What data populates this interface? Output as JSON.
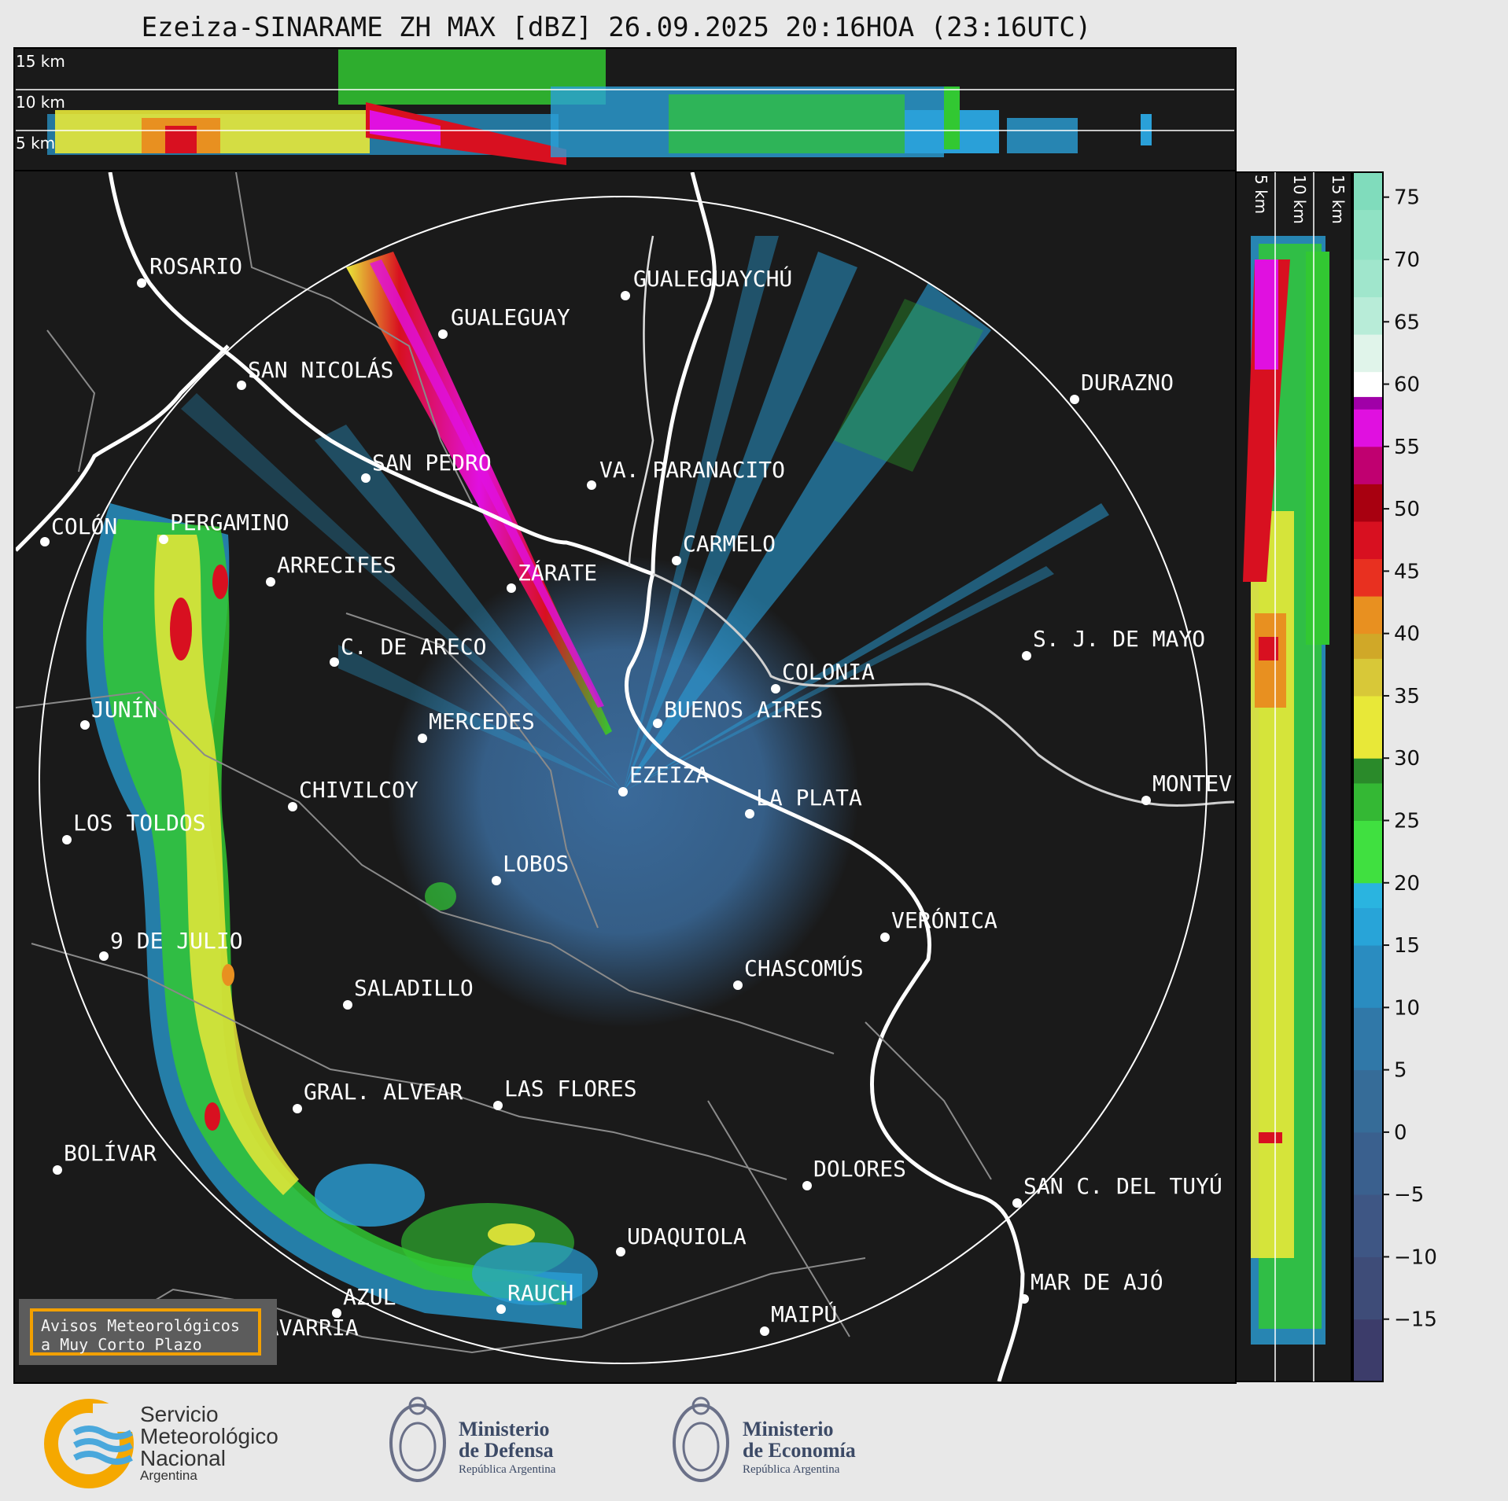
{
  "title": "Ezeiza-SINARAME ZH MAX [dBZ] 26.09.2025 20:16HOA (23:16UTC)",
  "top_panel": {
    "height_labels": [
      "15 km",
      "10 km",
      "5 km"
    ]
  },
  "side_panel": {
    "height_labels": [
      "5 km",
      "10 km",
      "15 km"
    ]
  },
  "colorbar": {
    "ticks": [
      75,
      70,
      65,
      60,
      55,
      50,
      45,
      40,
      35,
      30,
      25,
      20,
      15,
      10,
      5,
      0,
      "−5",
      "−10",
      "−15"
    ],
    "range_dbz": [
      -20,
      77
    ],
    "colors": {
      "clear_air": "#2f5d8a",
      "light": "#2aa0d8",
      "green": "#32c832",
      "yellow": "#e8e838",
      "orange": "#e89020",
      "red": "#d81020",
      "magenta": "#e010e0",
      "white": "#ffffff",
      "mint": "#80e0c0"
    }
  },
  "cities": [
    "ROSARIO",
    "GUALEGUAYCHÚ",
    "GUALEGUAY",
    "SAN NICOLÁS",
    "DURAZNO",
    "SAN PEDRO",
    "VA. PARANACITO",
    "COLÓN",
    "PERGAMINO",
    "ARRECIFES",
    "ZÁRATE",
    "CARMELO",
    "C. DE ARECO",
    "S. J. DE MAYO",
    "COLONIA",
    "JUNÍN",
    "BUENOS AIRES",
    "MERCEDES",
    "EZEIZA",
    "LA PLATA",
    "MONTEV",
    "CHIVILCOY",
    "LOS TOLDOS",
    "LOBOS",
    "VERÓNICA",
    "9 DE JULIO",
    "CHASCOMÚS",
    "SALADILLO",
    "GRAL. ALVEAR",
    "LAS FLORES",
    "BOLÍVAR",
    "DOLORES",
    "SAN C. DEL TUYÚ",
    "UDAQUIOLA",
    "RAUCH",
    "AZUL",
    "OLAVARRÍA",
    "MAR DE AJÓ",
    "MAIPÚ"
  ],
  "avisos": {
    "line1": "Avisos Meteorológicos",
    "line2": "a Muy Corto Plazo"
  },
  "logos": {
    "smn": {
      "line1": "Servicio",
      "line2": "Meteorológico",
      "line3": "Nacional",
      "line4": "Argentina"
    },
    "defensa": {
      "line1": "Ministerio",
      "line2": "de Defensa",
      "line3": "República Argentina"
    },
    "economia": {
      "line1": "Ministerio",
      "line2": "de Economía",
      "line3": "República Argentina"
    }
  }
}
